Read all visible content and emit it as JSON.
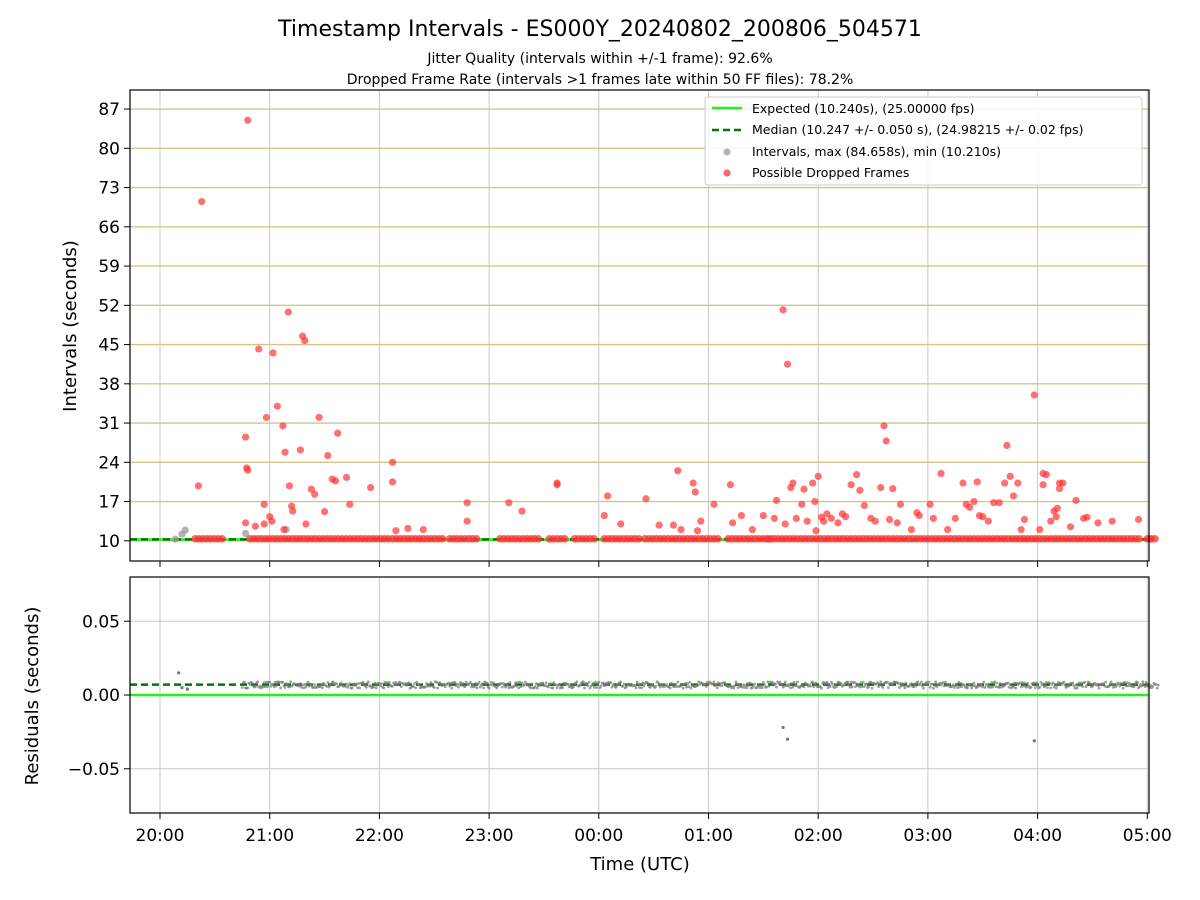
{
  "chart_data": {
    "type": "scatter",
    "title": "Timestamp Intervals - ES000Y_20240802_200806_504571",
    "subtitle_lines": [
      "Jitter Quality (intervals within +/-1 frame): 92.6%",
      "Dropped Frame Rate (intervals >1 frames late within 50 FF files): 78.2%"
    ],
    "xlabel": "Time (UTC)",
    "x_tick_labels": [
      "20:00",
      "21:00",
      "22:00",
      "23:00",
      "00:00",
      "01:00",
      "02:00",
      "03:00",
      "04:00",
      "05:00"
    ],
    "x_start": "20:00",
    "grid": true,
    "colors": {
      "expected": "#22ee22",
      "median": "#007700",
      "interval_points": "#999999",
      "dropped_points": "#ff3333",
      "upper_grid": "#d4c48c",
      "residual_points": "#777777"
    },
    "upper_panel": {
      "ylabel": "Intervals (seconds)",
      "yticks": [
        10,
        17,
        24,
        31,
        38,
        45,
        52,
        59,
        66,
        73,
        80,
        87
      ],
      "ylim": [
        6.4,
        90.4
      ],
      "expected_value": 10.24,
      "median_value": 10.247,
      "legend": {
        "position": "top-right",
        "entries": [
          "Expected (10.240s), (25.00000 fps)",
          "Median (10.247 +/- 0.050 s), (24.98215 +/- 0.02 fps)",
          "Intervals, max (84.658s), min (10.210s)",
          "Possible Dropped Frames"
        ]
      },
      "intervals_points": [
        {
          "t": 0.14,
          "v": 10.3
        },
        {
          "t": 0.2,
          "v": 11.2
        },
        {
          "t": 0.23,
          "v": 11.9
        },
        {
          "t": 0.78,
          "v": 11.3
        },
        {
          "t": 1.15,
          "v": 12.0
        }
      ],
      "dropped_bands": [
        [
          0.32,
          0.57
        ],
        [
          0.82,
          2.08
        ],
        [
          2.12,
          2.58
        ],
        [
          2.64,
          2.9
        ],
        [
          3.1,
          3.48
        ],
        [
          3.55,
          3.72
        ],
        [
          3.78,
          3.96
        ],
        [
          4.05,
          4.38
        ],
        [
          4.42,
          5.12
        ],
        [
          5.18,
          8.95
        ],
        [
          9.0,
          9.1
        ]
      ],
      "dropped_points": [
        {
          "t": 0.35,
          "v": 19.8
        },
        {
          "t": 0.38,
          "v": 70.5
        },
        {
          "t": 0.8,
          "v": 85.0
        },
        {
          "t": 0.78,
          "v": 28.5
        },
        {
          "t": 0.79,
          "v": 23.0
        },
        {
          "t": 0.8,
          "v": 22.6
        },
        {
          "t": 0.78,
          "v": 13.2
        },
        {
          "t": 0.87,
          "v": 12.6
        },
        {
          "t": 0.9,
          "v": 44.2
        },
        {
          "t": 0.95,
          "v": 16.5
        },
        {
          "t": 0.97,
          "v": 32.0
        },
        {
          "t": 0.95,
          "v": 13.0
        },
        {
          "t": 1.0,
          "v": 14.3
        },
        {
          "t": 1.03,
          "v": 43.5
        },
        {
          "t": 1.02,
          "v": 13.5
        },
        {
          "t": 1.07,
          "v": 34.0
        },
        {
          "t": 1.12,
          "v": 30.5
        },
        {
          "t": 1.14,
          "v": 25.8
        },
        {
          "t": 1.13,
          "v": 12.0
        },
        {
          "t": 1.18,
          "v": 19.8
        },
        {
          "t": 1.2,
          "v": 16.2
        },
        {
          "t": 1.21,
          "v": 15.3
        },
        {
          "t": 1.17,
          "v": 50.8
        },
        {
          "t": 1.28,
          "v": 26.2
        },
        {
          "t": 1.3,
          "v": 46.5
        },
        {
          "t": 1.32,
          "v": 45.7
        },
        {
          "t": 1.33,
          "v": 13.0
        },
        {
          "t": 1.38,
          "v": 19.2
        },
        {
          "t": 1.41,
          "v": 18.3
        },
        {
          "t": 1.45,
          "v": 32.0
        },
        {
          "t": 1.5,
          "v": 15.2
        },
        {
          "t": 1.53,
          "v": 25.2
        },
        {
          "t": 1.57,
          "v": 21.0
        },
        {
          "t": 1.6,
          "v": 20.7
        },
        {
          "t": 1.62,
          "v": 29.2
        },
        {
          "t": 1.7,
          "v": 21.3
        },
        {
          "t": 1.73,
          "v": 16.5
        },
        {
          "t": 1.92,
          "v": 19.5
        },
        {
          "t": 2.12,
          "v": 24.0
        },
        {
          "t": 2.12,
          "v": 20.5
        },
        {
          "t": 2.15,
          "v": 11.8
        },
        {
          "t": 2.26,
          "v": 12.2
        },
        {
          "t": 2.4,
          "v": 12.0
        },
        {
          "t": 2.8,
          "v": 16.8
        },
        {
          "t": 2.8,
          "v": 13.5
        },
        {
          "t": 3.18,
          "v": 16.8
        },
        {
          "t": 3.3,
          "v": 15.3
        },
        {
          "t": 3.62,
          "v": 20.3
        },
        {
          "t": 3.62,
          "v": 20.0
        },
        {
          "t": 4.05,
          "v": 14.5
        },
        {
          "t": 4.08,
          "v": 18.0
        },
        {
          "t": 4.2,
          "v": 13.0
        },
        {
          "t": 4.43,
          "v": 17.5
        },
        {
          "t": 4.55,
          "v": 12.8
        },
        {
          "t": 4.68,
          "v": 12.8
        },
        {
          "t": 4.72,
          "v": 22.5
        },
        {
          "t": 4.75,
          "v": 12.0
        },
        {
          "t": 4.86,
          "v": 20.3
        },
        {
          "t": 4.88,
          "v": 18.7
        },
        {
          "t": 4.9,
          "v": 11.8
        },
        {
          "t": 4.93,
          "v": 13.5
        },
        {
          "t": 5.05,
          "v": 16.5
        },
        {
          "t": 5.2,
          "v": 20.0
        },
        {
          "t": 5.22,
          "v": 13.2
        },
        {
          "t": 5.3,
          "v": 14.5
        },
        {
          "t": 5.4,
          "v": 12.0
        },
        {
          "t": 5.5,
          "v": 14.5
        },
        {
          "t": 5.55,
          "v": 10.3
        },
        {
          "t": 5.6,
          "v": 14.0
        },
        {
          "t": 5.62,
          "v": 17.2
        },
        {
          "t": 5.68,
          "v": 51.2
        },
        {
          "t": 5.7,
          "v": 13.0
        },
        {
          "t": 5.72,
          "v": 41.5
        },
        {
          "t": 5.75,
          "v": 19.5
        },
        {
          "t": 5.77,
          "v": 20.3
        },
        {
          "t": 5.8,
          "v": 14.0
        },
        {
          "t": 5.85,
          "v": 16.5
        },
        {
          "t": 5.87,
          "v": 19.2
        },
        {
          "t": 5.9,
          "v": 13.5
        },
        {
          "t": 5.95,
          "v": 20.3
        },
        {
          "t": 5.97,
          "v": 17.0
        },
        {
          "t": 5.98,
          "v": 11.8
        },
        {
          "t": 6.0,
          "v": 21.5
        },
        {
          "t": 6.03,
          "v": 14.2
        },
        {
          "t": 6.05,
          "v": 13.5
        },
        {
          "t": 6.08,
          "v": 14.8
        },
        {
          "t": 6.12,
          "v": 14.0
        },
        {
          "t": 6.18,
          "v": 13.2
        },
        {
          "t": 6.22,
          "v": 14.8
        },
        {
          "t": 6.25,
          "v": 14.3
        },
        {
          "t": 6.3,
          "v": 20.0
        },
        {
          "t": 6.35,
          "v": 21.8
        },
        {
          "t": 6.38,
          "v": 19.0
        },
        {
          "t": 6.42,
          "v": 16.3
        },
        {
          "t": 6.48,
          "v": 14.0
        },
        {
          "t": 6.52,
          "v": 13.5
        },
        {
          "t": 6.57,
          "v": 19.5
        },
        {
          "t": 6.6,
          "v": 30.5
        },
        {
          "t": 6.62,
          "v": 27.8
        },
        {
          "t": 6.65,
          "v": 13.8
        },
        {
          "t": 6.68,
          "v": 19.3
        },
        {
          "t": 6.72,
          "v": 13.2
        },
        {
          "t": 6.75,
          "v": 16.5
        },
        {
          "t": 6.85,
          "v": 12.0
        },
        {
          "t": 6.9,
          "v": 15.0
        },
        {
          "t": 6.92,
          "v": 14.5
        },
        {
          "t": 7.02,
          "v": 16.5
        },
        {
          "t": 7.05,
          "v": 14.0
        },
        {
          "t": 7.12,
          "v": 22.0
        },
        {
          "t": 7.18,
          "v": 12.0
        },
        {
          "t": 7.25,
          "v": 14.0
        },
        {
          "t": 7.32,
          "v": 20.3
        },
        {
          "t": 7.35,
          "v": 16.5
        },
        {
          "t": 7.38,
          "v": 16.0
        },
        {
          "t": 7.42,
          "v": 17.0
        },
        {
          "t": 7.45,
          "v": 20.5
        },
        {
          "t": 7.47,
          "v": 14.5
        },
        {
          "t": 7.5,
          "v": 14.3
        },
        {
          "t": 7.55,
          "v": 13.5
        },
        {
          "t": 7.6,
          "v": 16.8
        },
        {
          "t": 7.65,
          "v": 16.8
        },
        {
          "t": 7.72,
          "v": 27.0
        },
        {
          "t": 7.7,
          "v": 20.3
        },
        {
          "t": 7.75,
          "v": 21.5
        },
        {
          "t": 7.78,
          "v": 18.0
        },
        {
          "t": 7.82,
          "v": 20.3
        },
        {
          "t": 7.85,
          "v": 12.0
        },
        {
          "t": 7.88,
          "v": 13.8
        },
        {
          "t": 7.97,
          "v": 36.0
        },
        {
          "t": 8.02,
          "v": 12.0
        },
        {
          "t": 8.05,
          "v": 22.0
        },
        {
          "t": 8.05,
          "v": 20.0
        },
        {
          "t": 8.08,
          "v": 21.8
        },
        {
          "t": 8.12,
          "v": 13.5
        },
        {
          "t": 8.15,
          "v": 15.3
        },
        {
          "t": 8.17,
          "v": 14.3
        },
        {
          "t": 8.18,
          "v": 15.8
        },
        {
          "t": 8.2,
          "v": 20.3
        },
        {
          "t": 8.2,
          "v": 19.3
        },
        {
          "t": 8.23,
          "v": 20.3
        },
        {
          "t": 8.3,
          "v": 12.5
        },
        {
          "t": 8.35,
          "v": 17.2
        },
        {
          "t": 8.42,
          "v": 14.0
        },
        {
          "t": 8.45,
          "v": 14.2
        },
        {
          "t": 8.55,
          "v": 13.2
        },
        {
          "t": 8.68,
          "v": 13.5
        },
        {
          "t": 8.92,
          "v": 13.8
        },
        {
          "t": 9.02,
          "v": 10.3
        }
      ]
    },
    "lower_panel": {
      "ylabel": "Residuals (seconds)",
      "yticks": [
        0.05,
        0.0,
        -0.05
      ],
      "ytick_labels": [
        "0.05",
        "0.00",
        "−0.05"
      ],
      "ylim": [
        -0.08,
        0.08
      ],
      "expected_value": 0.0,
      "median_value": 0.007,
      "band_range": [
        0.75,
        9.1
      ],
      "band_center": 0.0068,
      "band_spread": 0.0022,
      "outliers": [
        {
          "t": 0.17,
          "v": 0.015
        },
        {
          "t": 0.2,
          "v": 0.005
        },
        {
          "t": 0.25,
          "v": 0.004
        },
        {
          "t": 5.68,
          "v": -0.022
        },
        {
          "t": 5.72,
          "v": -0.03
        },
        {
          "t": 7.97,
          "v": -0.031
        }
      ]
    }
  }
}
